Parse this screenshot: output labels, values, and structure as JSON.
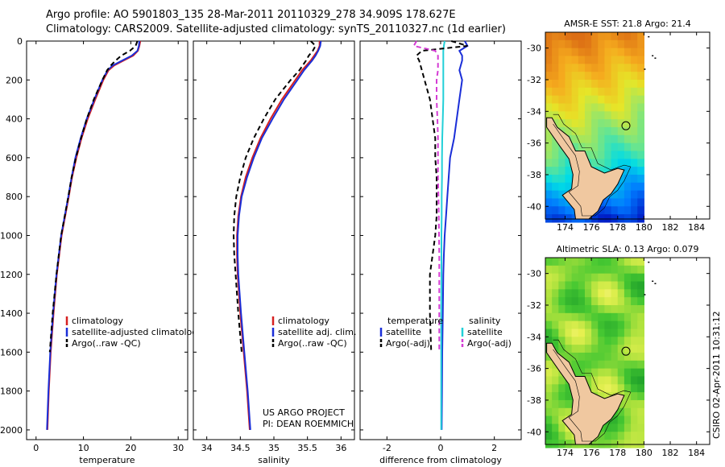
{
  "header": {
    "line1": "Argo profile: AO 5901803_135 28-Mar-2011 20110329_278 34.909S 178.627E",
    "line2": "Climatology: CARS2009. Satellite-adjusted climatology: synTS_20110327.nc (1d earlier)"
  },
  "colors": {
    "climatology": "#d62020",
    "satellite": "#1a2ed8",
    "argo": "#000000",
    "cyan": "#22d0d8",
    "magenta": "#d43cd4",
    "land": "#f0c8a0"
  },
  "credits": {
    "project": "US ARGO PROJECT",
    "pi": "PI: DEAN ROEMMICH"
  },
  "footer": {
    "stamp": "CSIRO 02-Apr-2011 10:31:12"
  },
  "chart_data": [
    {
      "type": "line",
      "id": "temperature",
      "xlabel": "temperature",
      "ylabel": "",
      "xlim": [
        -2,
        32
      ],
      "ylim": [
        2050,
        0
      ],
      "xticks": [
        "0",
        "10",
        "20",
        "30"
      ],
      "xtick_values": [
        0,
        10,
        20,
        30
      ],
      "yticks": [
        "0",
        "200",
        "400",
        "600",
        "800",
        "1000",
        "1200",
        "1400",
        "1600",
        "1800",
        "2000"
      ],
      "ytick_values": [
        0,
        200,
        400,
        600,
        800,
        1000,
        1200,
        1400,
        1600,
        1800,
        2000
      ],
      "depth": [
        0,
        25,
        50,
        75,
        100,
        125,
        150,
        200,
        300,
        400,
        500,
        600,
        700,
        800,
        1000,
        1200,
        1400,
        1600,
        1800,
        2000
      ],
      "series": [
        {
          "name": "climatology",
          "color": "climatology",
          "dash": "",
          "values": [
            22.0,
            21.8,
            21.5,
            20.5,
            18.5,
            16.5,
            15.3,
            14.2,
            12.5,
            10.9,
            9.6,
            8.5,
            7.6,
            6.9,
            5.4,
            4.4,
            3.7,
            3.1,
            2.7,
            2.4
          ]
        },
        {
          "name": "satellite-adjusted climatology",
          "color": "satellite",
          "dash": "",
          "values": [
            21.8,
            21.7,
            21.4,
            20.2,
            18.2,
            16.2,
            15.1,
            14.0,
            12.3,
            10.7,
            9.4,
            8.3,
            7.5,
            6.8,
            5.3,
            4.3,
            3.6,
            3.0,
            2.6,
            2.3
          ]
        },
        {
          "name": "Argo(..raw -QC)",
          "color": "argo",
          "dash": "6,4",
          "values": [
            21.4,
            21.0,
            19.8,
            18.0,
            16.8,
            15.8,
            15.0,
            14.0,
            12.2,
            10.7,
            9.5,
            8.4,
            7.5,
            6.8,
            5.3,
            4.3,
            3.5,
            2.9,
            null,
            null
          ]
        }
      ],
      "legend": {
        "position": "lower-right",
        "labels": [
          "climatology",
          "satellite-adjusted climatology",
          "Argo(..raw -QC)"
        ]
      }
    },
    {
      "type": "line",
      "id": "salinity",
      "xlabel": "salinity",
      "ylabel": "",
      "xlim": [
        33.8,
        36.2
      ],
      "ylim": [
        2050,
        0
      ],
      "xticks": [
        "34",
        "34.5",
        "35",
        "35.5",
        "36"
      ],
      "xtick_values": [
        34,
        34.5,
        35,
        35.5,
        36
      ],
      "depth": [
        0,
        25,
        50,
        75,
        100,
        150,
        200,
        300,
        400,
        500,
        600,
        700,
        800,
        900,
        1000,
        1100,
        1200,
        1400,
        1600,
        1800,
        2000
      ],
      "series": [
        {
          "name": "climatology",
          "color": "climatology",
          "dash": "",
          "values": [
            35.68,
            35.68,
            35.65,
            35.6,
            35.55,
            35.42,
            35.32,
            35.12,
            34.95,
            34.8,
            34.68,
            34.58,
            34.51,
            34.47,
            34.45,
            34.45,
            34.46,
            34.5,
            34.55,
            34.6,
            34.64
          ]
        },
        {
          "name": "satellite adj. clim.",
          "color": "satellite",
          "dash": "",
          "values": [
            35.7,
            35.69,
            35.66,
            35.62,
            35.57,
            35.45,
            35.35,
            35.15,
            34.98,
            34.82,
            34.7,
            34.6,
            34.52,
            34.48,
            34.46,
            34.46,
            34.47,
            34.51,
            34.56,
            34.61,
            34.65
          ]
        },
        {
          "name": "Argo(..raw -QC)",
          "color": "argo",
          "dash": "6,4",
          "values": [
            35.55,
            35.62,
            35.58,
            35.52,
            35.48,
            35.38,
            35.25,
            35.02,
            34.85,
            34.7,
            34.58,
            34.5,
            34.44,
            34.41,
            34.4,
            34.41,
            34.43,
            34.47,
            34.52,
            null,
            null
          ]
        }
      ],
      "legend": {
        "position": "lower-right",
        "labels": [
          "climatology",
          "satellite adj. clim.",
          "Argo(..raw -QC)"
        ]
      }
    },
    {
      "type": "line",
      "id": "difference",
      "xlabel": "difference from climatology",
      "ylabel": "",
      "xlim": [
        -3,
        3
      ],
      "ylim": [
        2050,
        0
      ],
      "xticks": [
        "-2",
        "0",
        "2"
      ],
      "xtick_values": [
        -2,
        0,
        2
      ],
      "depth": [
        0,
        25,
        50,
        75,
        100,
        150,
        200,
        300,
        400,
        500,
        600,
        700,
        800,
        900,
        1000,
        1100,
        1200,
        1400,
        1600,
        1800,
        2000
      ],
      "series": [
        {
          "name": "temperature satellite",
          "color": "satellite",
          "dash": "",
          "values": [
            0.9,
            1.0,
            0.7,
            0.8,
            0.8,
            0.7,
            0.8,
            0.7,
            0.6,
            0.5,
            0.35,
            0.3,
            0.25,
            0.2,
            0.15,
            0.12,
            0.1,
            0.08,
            0.06,
            0.05,
            0.04
          ]
        },
        {
          "name": "temperature Argo(-adj)",
          "color": "argo",
          "dash": "6,4",
          "values": [
            0.4,
            1.0,
            -0.7,
            -0.9,
            -0.8,
            -0.7,
            -0.6,
            -0.4,
            -0.3,
            -0.2,
            -0.2,
            -0.15,
            -0.15,
            -0.15,
            -0.2,
            -0.3,
            -0.4,
            -0.4,
            -0.35,
            null,
            null
          ]
        },
        {
          "name": "salinity satellite",
          "color": "cyan",
          "dash": "",
          "values": [
            0.15,
            0.12,
            0.1,
            0.1,
            0.1,
            0.1,
            0.1,
            0.1,
            0.08,
            0.06,
            0.05,
            0.05,
            0.04,
            0.04,
            0.03,
            0.03,
            0.03,
            0.02,
            0.02,
            0.02,
            0.02
          ]
        },
        {
          "name": "salinity Argo(-adj)",
          "color": "magenta",
          "dash": "6,4",
          "values": [
            -0.9,
            -1.0,
            -0.2,
            -0.1,
            -0.1,
            -0.1,
            -0.15,
            -0.15,
            -0.12,
            -0.1,
            -0.1,
            -0.1,
            -0.08,
            -0.07,
            -0.06,
            -0.05,
            -0.05,
            -0.05,
            -0.05,
            null,
            null
          ]
        }
      ],
      "legend": {
        "position": "lower-center",
        "temperature_title": "temperature",
        "salinity_title": "salinity",
        "labels": [
          "satellite",
          "Argo(-adj)",
          "satellite",
          "Argo(-adj)"
        ]
      }
    },
    {
      "type": "heatmap",
      "id": "sst_map",
      "title": "AMSR-E SST: 21.8 Argo: 21.4",
      "xlim": [
        172.5,
        185
      ],
      "ylim": [
        -40.8,
        -29
      ],
      "xticks": [
        "174",
        "176",
        "178",
        "180",
        "182",
        "184"
      ],
      "xtick_values": [
        174,
        176,
        178,
        180,
        182,
        184
      ],
      "yticks": [
        "-30",
        "-32",
        "-34",
        "-36",
        "-38",
        "-40"
      ],
      "ytick_values": [
        -30,
        -32,
        -34,
        -36,
        -38,
        -40
      ],
      "marker": {
        "lon": 178.627,
        "lat": -34.909
      }
    },
    {
      "type": "heatmap",
      "id": "sla_map",
      "title": "Altimetric SLA: 0.13 Argo: 0.079",
      "xlim": [
        172.5,
        185
      ],
      "ylim": [
        -40.8,
        -29
      ],
      "xticks": [
        "174",
        "176",
        "178",
        "180",
        "182",
        "184"
      ],
      "xtick_values": [
        174,
        176,
        178,
        180,
        182,
        184
      ],
      "yticks": [
        "-30",
        "-32",
        "-34",
        "-36",
        "-38",
        "-40"
      ],
      "ytick_values": [
        -30,
        -32,
        -34,
        -36,
        -38,
        -40
      ],
      "marker": {
        "lon": 178.627,
        "lat": -34.909
      }
    }
  ]
}
